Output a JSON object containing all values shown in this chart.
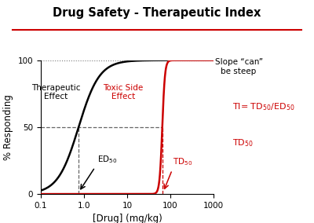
{
  "title": "Drug Safety - Therapeutic Index",
  "xlabel": "[Drug] (mg/kg)",
  "ylabel": "% Responding",
  "xmin": 0.1,
  "xmax": 1000,
  "ymin": 0,
  "ymax": 100,
  "ed50": 0.75,
  "td50": 65.0,
  "hill_black": 1.8,
  "hill_red": 14,
  "black_curve_color": "#000000",
  "red_curve_color": "#cc0000",
  "dashed_color": "#666666",
  "dashed_color_red": "#cc0000",
  "dotted_line_color": "#777777",
  "title_underline_color": "#cc0000",
  "background_color": "#ffffff"
}
